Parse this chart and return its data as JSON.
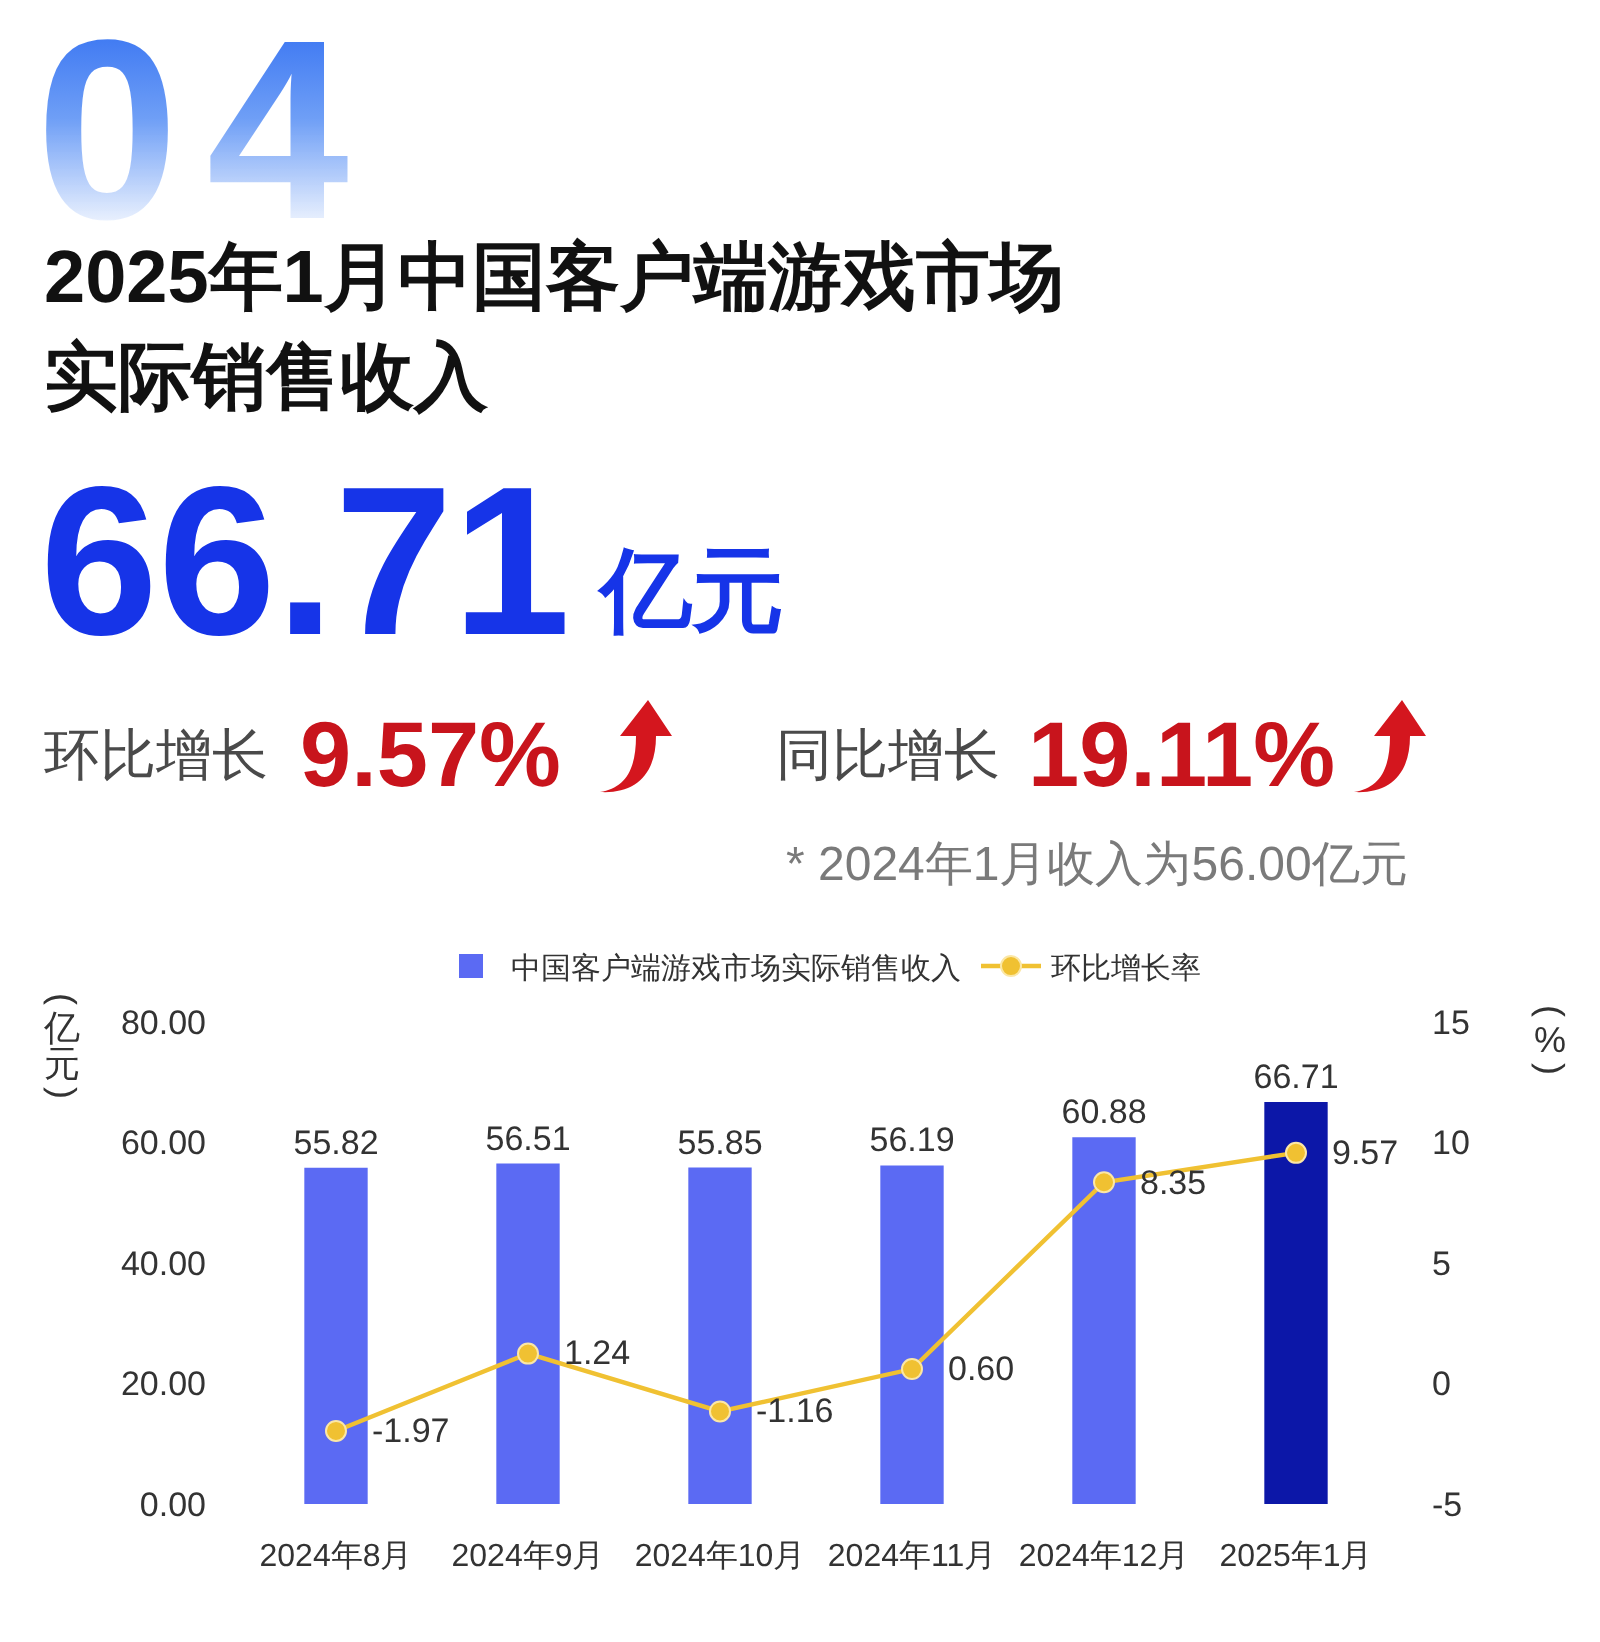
{
  "chart_data": {
    "type": "bar",
    "title": "2025年1月中国客户端游戏市场实际销售收入",
    "annotations": [
      "04",
      "66.71",
      "亿元",
      "环比增长",
      "9.57%",
      "同比增长",
      "19.11%",
      "* 2024年1月收入为56.00亿元"
    ],
    "categories": [
      "2024年8月",
      "2024年9月",
      "2024年10月",
      "2024年11月",
      "2024年12月",
      "2025年1月"
    ],
    "series": [
      {
        "name": "中国客户端游戏市场实际销售收入",
        "colors": [
          "#5b6af3",
          "#5b6af3",
          "#5b6af3",
          "#5b6af3",
          "#5b6af3",
          "#0c17a8"
        ],
        "values": [
          55.82,
          56.51,
          55.85,
          56.19,
          60.88,
          66.71
        ],
        "value_labels": [
          "55.82",
          "56.51",
          "55.85",
          "56.19",
          "60.88",
          "66.71"
        ]
      },
      {
        "name": "环比增长率",
        "type": "line",
        "axis": "y2",
        "color": "#f0c132",
        "values": [
          -1.97,
          1.24,
          -1.16,
          0.6,
          8.35,
          9.57
        ],
        "value_labels": [
          "-1.97",
          "1.24",
          "-1.16",
          "0.60",
          "8.35",
          "9.57"
        ]
      }
    ],
    "ylabel": "(亿元)",
    "y2label": "(%)",
    "ylim": [
      0,
      80
    ],
    "yticks": [
      {
        "value": 0,
        "label": "0.00"
      },
      {
        "value": 20,
        "label": "20.00"
      },
      {
        "value": 40,
        "label": "40.00"
      },
      {
        "value": 60,
        "label": "60.00"
      },
      {
        "value": 80,
        "label": "80.00"
      }
    ],
    "y2lim": [
      -5,
      15
    ],
    "y2ticks": [
      -5,
      0,
      5,
      10,
      15
    ],
    "legend": "top",
    "marker": "circle",
    "line_style": "solid"
  }
}
